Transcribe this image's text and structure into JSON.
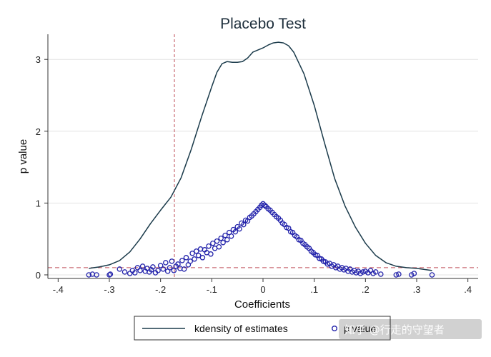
{
  "watermark": "知乎 @行走的守望者",
  "chart_data": {
    "type": "scatter",
    "title": "Placebo Test",
    "xlabel": "Coefficients",
    "ylabel": "p value",
    "xlim": [
      -0.42,
      0.42
    ],
    "ylim": [
      -0.05,
      3.35
    ],
    "x_ticks": [
      -0.4,
      -0.3,
      -0.2,
      -0.1,
      0,
      0.1,
      0.2,
      0.3,
      0.4
    ],
    "x_tick_labels": [
      "-.4",
      "-.3",
      "-.2",
      "-.1",
      "0",
      ".1",
      ".2",
      ".3",
      ".4"
    ],
    "y_ticks": [
      0,
      1,
      2,
      3
    ],
    "y_tick_labels": [
      "0",
      "1",
      "2",
      "3"
    ],
    "grid": "horizontal",
    "reference_lines": [
      {
        "orientation": "vertical",
        "value": -0.173,
        "color": "#c0505a",
        "style": "dashed"
      },
      {
        "orientation": "horizontal",
        "value": 0.1,
        "color": "#c0505a",
        "style": "dashed"
      }
    ],
    "legend_position": "bottom",
    "colors": {
      "kdensity": "#1a3a4a",
      "pvalue": "#2222aa",
      "reference": "#c0505a"
    },
    "series": [
      {
        "name": "kdensity of estimates",
        "kind": "line",
        "x": [
          -0.34,
          -0.32,
          -0.3,
          -0.28,
          -0.26,
          -0.24,
          -0.22,
          -0.2,
          -0.18,
          -0.16,
          -0.14,
          -0.12,
          -0.1,
          -0.09,
          -0.08,
          -0.07,
          -0.06,
          -0.05,
          -0.04,
          -0.03,
          -0.02,
          -0.01,
          0.0,
          0.01,
          0.02,
          0.03,
          0.04,
          0.05,
          0.06,
          0.08,
          0.1,
          0.12,
          0.14,
          0.16,
          0.18,
          0.2,
          0.22,
          0.24,
          0.26,
          0.28,
          0.3,
          0.32,
          0.33
        ],
        "y": [
          0.09,
          0.11,
          0.14,
          0.2,
          0.32,
          0.5,
          0.71,
          0.9,
          1.08,
          1.35,
          1.75,
          2.2,
          2.62,
          2.82,
          2.94,
          2.97,
          2.96,
          2.96,
          2.97,
          3.02,
          3.1,
          3.13,
          3.16,
          3.2,
          3.23,
          3.24,
          3.23,
          3.19,
          3.1,
          2.8,
          2.36,
          1.84,
          1.34,
          0.96,
          0.67,
          0.44,
          0.27,
          0.17,
          0.12,
          0.1,
          0.09,
          0.07,
          0.06
        ]
      },
      {
        "name": "p value",
        "kind": "scatter",
        "x": [
          -0.34,
          -0.333,
          -0.325,
          -0.3,
          -0.298,
          -0.28,
          -0.27,
          -0.26,
          -0.255,
          -0.25,
          -0.245,
          -0.24,
          -0.235,
          -0.23,
          -0.226,
          -0.222,
          -0.218,
          -0.215,
          -0.21,
          -0.205,
          -0.2,
          -0.195,
          -0.19,
          -0.186,
          -0.182,
          -0.178,
          -0.174,
          -0.17,
          -0.166,
          -0.162,
          -0.158,
          -0.154,
          -0.15,
          -0.146,
          -0.142,
          -0.138,
          -0.134,
          -0.13,
          -0.126,
          -0.122,
          -0.118,
          -0.114,
          -0.11,
          -0.106,
          -0.102,
          -0.098,
          -0.094,
          -0.09,
          -0.086,
          -0.082,
          -0.078,
          -0.074,
          -0.07,
          -0.066,
          -0.062,
          -0.058,
          -0.054,
          -0.05,
          -0.046,
          -0.042,
          -0.038,
          -0.034,
          -0.03,
          -0.026,
          -0.022,
          -0.018,
          -0.014,
          -0.01,
          -0.006,
          -0.003,
          0.0,
          0.003,
          0.006,
          0.01,
          0.014,
          0.018,
          0.022,
          0.026,
          0.03,
          0.034,
          0.038,
          0.042,
          0.046,
          0.05,
          0.054,
          0.058,
          0.062,
          0.066,
          0.07,
          0.074,
          0.078,
          0.082,
          0.086,
          0.09,
          0.094,
          0.098,
          0.102,
          0.106,
          0.11,
          0.114,
          0.118,
          0.122,
          0.126,
          0.13,
          0.134,
          0.138,
          0.142,
          0.146,
          0.15,
          0.154,
          0.158,
          0.162,
          0.166,
          0.17,
          0.174,
          0.178,
          0.182,
          0.186,
          0.19,
          0.195,
          0.2,
          0.205,
          0.21,
          0.215,
          0.22,
          0.23,
          0.26,
          0.265,
          0.29,
          0.295,
          0.33
        ],
        "y": [
          0.0,
          0.01,
          0.0,
          0.0,
          0.01,
          0.08,
          0.04,
          0.02,
          0.06,
          0.03,
          0.1,
          0.06,
          0.12,
          0.05,
          0.09,
          0.04,
          0.07,
          0.11,
          0.03,
          0.06,
          0.13,
          0.08,
          0.17,
          0.05,
          0.1,
          0.19,
          0.06,
          0.12,
          0.15,
          0.09,
          0.2,
          0.08,
          0.24,
          0.14,
          0.19,
          0.3,
          0.22,
          0.33,
          0.27,
          0.36,
          0.24,
          0.35,
          0.31,
          0.4,
          0.29,
          0.44,
          0.37,
          0.47,
          0.39,
          0.51,
          0.45,
          0.55,
          0.49,
          0.59,
          0.54,
          0.63,
          0.6,
          0.67,
          0.64,
          0.72,
          0.7,
          0.76,
          0.75,
          0.8,
          0.82,
          0.85,
          0.88,
          0.91,
          0.94,
          0.97,
          0.99,
          0.97,
          0.95,
          0.92,
          0.9,
          0.87,
          0.84,
          0.81,
          0.79,
          0.76,
          0.72,
          0.7,
          0.66,
          0.65,
          0.6,
          0.59,
          0.55,
          0.53,
          0.49,
          0.48,
          0.44,
          0.42,
          0.39,
          0.37,
          0.33,
          0.31,
          0.28,
          0.27,
          0.23,
          0.22,
          0.19,
          0.18,
          0.15,
          0.16,
          0.12,
          0.14,
          0.1,
          0.12,
          0.08,
          0.1,
          0.07,
          0.09,
          0.05,
          0.08,
          0.04,
          0.06,
          0.03,
          0.05,
          0.02,
          0.04,
          0.05,
          0.03,
          0.06,
          0.02,
          0.04,
          0.01,
          0.0,
          0.01,
          0.0,
          0.02,
          0.0
        ]
      }
    ]
  }
}
